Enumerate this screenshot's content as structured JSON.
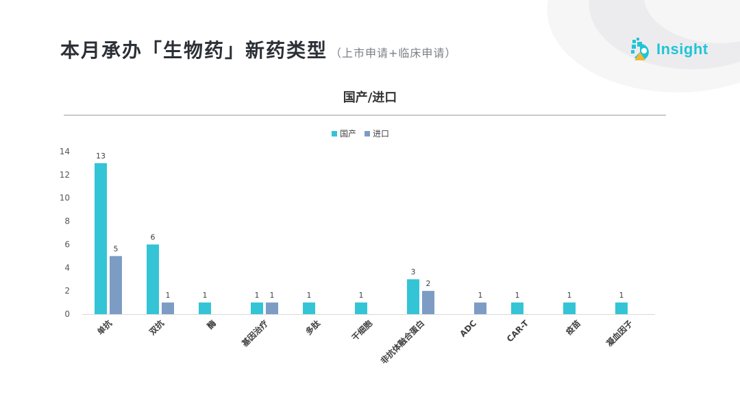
{
  "slide": {
    "title": "本月承办「生物药」新药类型",
    "subtitle": "（上市申请+临床申请）"
  },
  "logo": {
    "text": "Insight"
  },
  "chart_data": {
    "type": "bar",
    "title": "国产/进口",
    "categories": [
      "单抗",
      "双抗",
      "酶",
      "基因治疗",
      "多肽",
      "干细胞",
      "非抗体融合蛋白",
      "ADC",
      "CAR-T",
      "疫苗",
      "凝血因子"
    ],
    "series": [
      {
        "name": "国产",
        "color": "#33c4d5",
        "values": [
          13,
          6,
          1,
          1,
          1,
          1,
          3,
          null,
          1,
          1,
          1
        ]
      },
      {
        "name": "进口",
        "color": "#7c9cc4",
        "values": [
          5,
          1,
          null,
          1,
          null,
          null,
          2,
          1,
          null,
          null,
          null
        ]
      }
    ],
    "ylim": [
      0,
      14
    ],
    "yticks": [
      0,
      2,
      4,
      6,
      8,
      10,
      12,
      14
    ],
    "grid": false,
    "legend": "top-center"
  }
}
